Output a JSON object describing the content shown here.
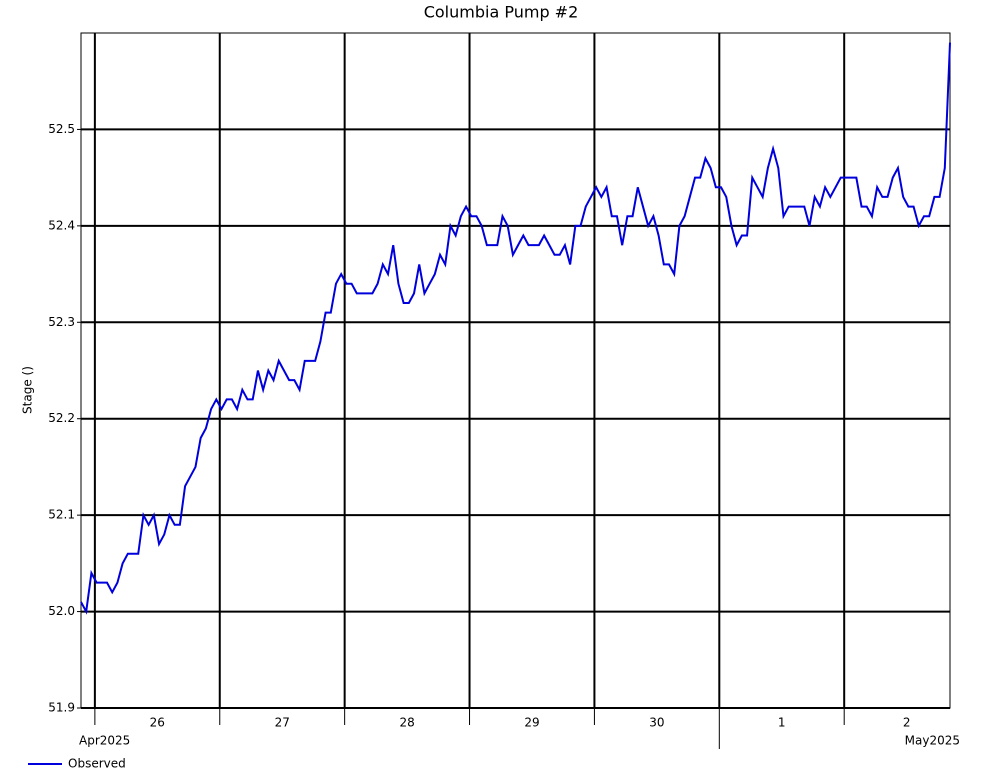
{
  "chart_data": {
    "type": "line",
    "title": "Columbia Pump #2",
    "y_label": "Stage ()",
    "x": [
      "2025-04-25T21:20",
      "2025-04-25T22:20",
      "2025-04-25T23:20",
      "2025-04-26T00:20",
      "2025-04-26T01:20",
      "2025-04-26T02:20",
      "2025-04-26T03:20",
      "2025-04-26T04:20",
      "2025-04-26T05:20",
      "2025-04-26T06:20",
      "2025-04-26T07:20",
      "2025-04-26T08:20",
      "2025-04-26T09:20",
      "2025-04-26T10:20",
      "2025-04-26T11:20",
      "2025-04-26T12:20",
      "2025-04-26T13:20",
      "2025-04-26T14:20",
      "2025-04-26T15:20",
      "2025-04-26T16:20",
      "2025-04-26T17:20",
      "2025-04-26T18:20",
      "2025-04-26T19:20",
      "2025-04-26T20:20",
      "2025-04-26T21:20",
      "2025-04-26T22:20",
      "2025-04-26T23:20",
      "2025-04-27T00:20",
      "2025-04-27T01:20",
      "2025-04-27T02:20",
      "2025-04-27T03:20",
      "2025-04-27T04:20",
      "2025-04-27T05:20",
      "2025-04-27T06:20",
      "2025-04-27T07:20",
      "2025-04-27T08:20",
      "2025-04-27T09:20",
      "2025-04-27T10:20",
      "2025-04-27T11:20",
      "2025-04-27T12:20",
      "2025-04-27T13:20",
      "2025-04-27T14:20",
      "2025-04-27T15:20",
      "2025-04-27T16:20",
      "2025-04-27T17:20",
      "2025-04-27T18:20",
      "2025-04-27T19:20",
      "2025-04-27T20:20",
      "2025-04-27T21:20",
      "2025-04-27T22:20",
      "2025-04-27T23:20",
      "2025-04-28T00:20",
      "2025-04-28T01:20",
      "2025-04-28T02:20",
      "2025-04-28T03:20",
      "2025-04-28T04:20",
      "2025-04-28T05:20",
      "2025-04-28T06:20",
      "2025-04-28T07:20",
      "2025-04-28T08:20",
      "2025-04-28T09:20",
      "2025-04-28T10:20",
      "2025-04-28T11:20",
      "2025-04-28T12:20",
      "2025-04-28T13:20",
      "2025-04-28T14:20",
      "2025-04-28T15:20",
      "2025-04-28T16:20",
      "2025-04-28T17:20",
      "2025-04-28T18:20",
      "2025-04-28T19:20",
      "2025-04-28T20:20",
      "2025-04-28T21:20",
      "2025-04-28T22:20",
      "2025-04-28T23:20",
      "2025-04-29T00:20",
      "2025-04-29T01:20",
      "2025-04-29T02:20",
      "2025-04-29T03:20",
      "2025-04-29T04:20",
      "2025-04-29T05:20",
      "2025-04-29T06:20",
      "2025-04-29T07:20",
      "2025-04-29T08:20",
      "2025-04-29T09:20",
      "2025-04-29T10:20",
      "2025-04-29T11:20",
      "2025-04-29T12:20",
      "2025-04-29T13:20",
      "2025-04-29T14:20",
      "2025-04-29T15:20",
      "2025-04-29T16:20",
      "2025-04-29T17:20",
      "2025-04-29T18:20",
      "2025-04-29T19:20",
      "2025-04-29T20:20",
      "2025-04-29T21:20",
      "2025-04-29T22:20",
      "2025-04-29T23:20",
      "2025-04-30T00:20",
      "2025-04-30T01:20",
      "2025-04-30T02:20",
      "2025-04-30T03:20",
      "2025-04-30T04:20",
      "2025-04-30T05:20",
      "2025-04-30T06:20",
      "2025-04-30T07:20",
      "2025-04-30T08:20",
      "2025-04-30T09:20",
      "2025-04-30T10:20",
      "2025-04-30T11:20",
      "2025-04-30T12:20",
      "2025-04-30T13:20",
      "2025-04-30T14:20",
      "2025-04-30T15:20",
      "2025-04-30T16:20",
      "2025-04-30T17:20",
      "2025-04-30T18:20",
      "2025-04-30T19:20",
      "2025-04-30T20:20",
      "2025-04-30T21:20",
      "2025-04-30T22:20",
      "2025-04-30T23:20",
      "2025-05-01T00:20",
      "2025-05-01T01:20",
      "2025-05-01T02:20",
      "2025-05-01T03:20",
      "2025-05-01T04:20",
      "2025-05-01T05:20",
      "2025-05-01T06:20",
      "2025-05-01T07:20",
      "2025-05-01T08:20",
      "2025-05-01T09:20",
      "2025-05-01T10:20",
      "2025-05-01T11:20",
      "2025-05-01T12:20",
      "2025-05-01T13:20",
      "2025-05-01T14:20",
      "2025-05-01T15:20",
      "2025-05-01T16:20",
      "2025-05-01T17:20",
      "2025-05-01T18:20",
      "2025-05-01T19:20",
      "2025-05-01T20:20",
      "2025-05-01T21:20",
      "2025-05-01T22:20",
      "2025-05-01T23:20",
      "2025-05-02T00:20",
      "2025-05-02T01:20",
      "2025-05-02T02:20",
      "2025-05-02T03:20",
      "2025-05-02T04:20",
      "2025-05-02T05:20",
      "2025-05-02T06:20",
      "2025-05-02T07:20",
      "2025-05-02T08:20",
      "2025-05-02T09:20",
      "2025-05-02T10:20",
      "2025-05-02T11:20",
      "2025-05-02T12:20",
      "2025-05-02T13:20",
      "2025-05-02T14:20",
      "2025-05-02T15:20",
      "2025-05-02T16:20",
      "2025-05-02T17:20",
      "2025-05-02T18:20",
      "2025-05-02T19:20",
      "2025-05-02T20:20"
    ],
    "series": [
      {
        "name": "Observed",
        "color": "#0000dd",
        "values": [
          52.01,
          52.0,
          52.04,
          52.03,
          52.03,
          52.03,
          52.02,
          52.03,
          52.05,
          52.06,
          52.06,
          52.06,
          52.1,
          52.09,
          52.1,
          52.07,
          52.08,
          52.1,
          52.09,
          52.09,
          52.13,
          52.14,
          52.15,
          52.18,
          52.19,
          52.21,
          52.22,
          52.21,
          52.22,
          52.22,
          52.21,
          52.23,
          52.22,
          52.22,
          52.25,
          52.23,
          52.25,
          52.24,
          52.26,
          52.25,
          52.24,
          52.24,
          52.23,
          52.26,
          52.26,
          52.26,
          52.28,
          52.31,
          52.31,
          52.34,
          52.35,
          52.34,
          52.34,
          52.33,
          52.33,
          52.33,
          52.33,
          52.34,
          52.36,
          52.35,
          52.38,
          52.34,
          52.32,
          52.32,
          52.33,
          52.36,
          52.33,
          52.34,
          52.35,
          52.37,
          52.36,
          52.4,
          52.39,
          52.41,
          52.42,
          52.41,
          52.41,
          52.4,
          52.38,
          52.38,
          52.38,
          52.41,
          52.4,
          52.37,
          52.38,
          52.39,
          52.38,
          52.38,
          52.38,
          52.39,
          52.38,
          52.37,
          52.37,
          52.38,
          52.36,
          52.4,
          52.4,
          52.42,
          52.43,
          52.44,
          52.43,
          52.44,
          52.41,
          52.41,
          52.38,
          52.41,
          52.41,
          52.44,
          52.42,
          52.4,
          52.41,
          52.39,
          52.36,
          52.36,
          52.35,
          52.4,
          52.41,
          52.43,
          52.45,
          52.45,
          52.47,
          52.46,
          52.44,
          52.44,
          52.43,
          52.4,
          52.38,
          52.39,
          52.39,
          52.45,
          52.44,
          52.43,
          52.46,
          52.48,
          52.46,
          52.41,
          52.42,
          52.42,
          52.42,
          52.42,
          52.4,
          52.43,
          52.42,
          52.44,
          52.43,
          52.44,
          52.45,
          52.45,
          52.45,
          52.45,
          52.42,
          52.42,
          52.41,
          52.44,
          52.43,
          52.43,
          52.45,
          52.46,
          52.43,
          52.42,
          52.42,
          52.4,
          52.41,
          52.41,
          52.43,
          52.43,
          52.46,
          52.59
        ]
      }
    ],
    "xlim": [
      "2025-04-25T21:20",
      "2025-05-02T20:20"
    ],
    "xticks": [
      {
        "value": "2025-04-26T00:00",
        "label": "26"
      },
      {
        "value": "2025-04-27T00:00",
        "label": "27"
      },
      {
        "value": "2025-04-28T00:00",
        "label": "28"
      },
      {
        "value": "2025-04-29T00:00",
        "label": "29"
      },
      {
        "value": "2025-04-30T00:00",
        "label": "30"
      },
      {
        "value": "2025-05-01T00:00",
        "label": "1"
      },
      {
        "value": "2025-05-02T00:00",
        "label": "2"
      }
    ],
    "month_labels": [
      {
        "value": "2025-04-01T00:00",
        "label": "Apr2025"
      },
      {
        "value": "2025-05-01T00:00",
        "label": "May2025"
      }
    ],
    "ylim": [
      51.9,
      52.6
    ],
    "yticks": [
      51.9,
      {
        "value": 52,
        "label": "52.0"
      },
      52.1,
      52.2,
      52.3,
      52.4,
      52.5
    ],
    "grid": true,
    "legend": "bottom-left"
  }
}
